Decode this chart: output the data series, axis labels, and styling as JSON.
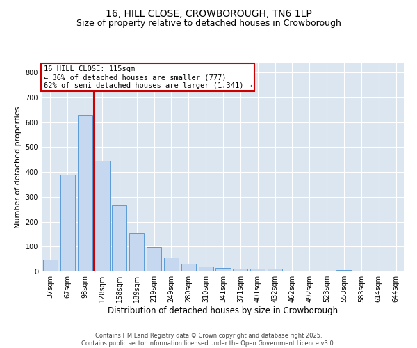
{
  "title1": "16, HILL CLOSE, CROWBOROUGH, TN6 1LP",
  "title2": "Size of property relative to detached houses in Crowborough",
  "xlabel": "Distribution of detached houses by size in Crowborough",
  "ylabel": "Number of detached properties",
  "categories": [
    "37sqm",
    "67sqm",
    "98sqm",
    "128sqm",
    "158sqm",
    "189sqm",
    "219sqm",
    "249sqm",
    "280sqm",
    "310sqm",
    "341sqm",
    "371sqm",
    "401sqm",
    "432sqm",
    "462sqm",
    "492sqm",
    "523sqm",
    "553sqm",
    "583sqm",
    "614sqm",
    "644sqm"
  ],
  "values": [
    47,
    390,
    630,
    445,
    265,
    155,
    97,
    57,
    30,
    20,
    15,
    12,
    12,
    10,
    0,
    0,
    0,
    5,
    0,
    0,
    0
  ],
  "bar_color": "#c5d8f0",
  "bar_edge_color": "#5b9bd5",
  "background_color": "#dce6f1",
  "annotation_text": "16 HILL CLOSE: 115sqm\n← 36% of detached houses are smaller (777)\n62% of semi-detached houses are larger (1,341) →",
  "annotation_box_color": "#ffffff",
  "annotation_box_edge": "#cc0000",
  "vline_x": 2.5,
  "vline_color": "#cc0000",
  "ylim": [
    0,
    840
  ],
  "footnote": "Contains HM Land Registry data © Crown copyright and database right 2025.\nContains public sector information licensed under the Open Government Licence v3.0.",
  "title1_fontsize": 10,
  "title2_fontsize": 9,
  "xlabel_fontsize": 8.5,
  "ylabel_fontsize": 8,
  "tick_fontsize": 7,
  "annot_fontsize": 7.5,
  "footnote_fontsize": 6
}
